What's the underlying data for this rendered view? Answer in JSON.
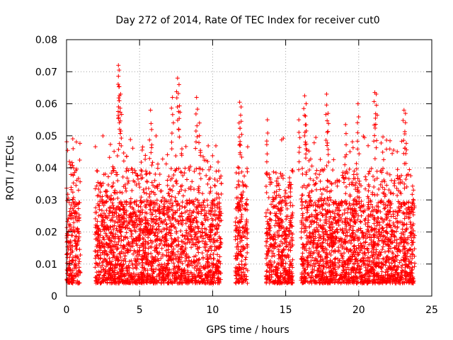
{
  "chart_data": {
    "type": "scatter",
    "title": "Day 272 of 2014, Rate Of TEC Index for receiver cut0",
    "xlabel": "GPS time / hours",
    "ylabel": "ROTI / TECUs",
    "xlim": [
      0,
      25
    ],
    "ylim": [
      0,
      0.08
    ],
    "xticks": [
      0,
      5,
      10,
      15,
      20,
      25
    ],
    "yticks": [
      0,
      0.01,
      0.02,
      0.03,
      0.04,
      0.05,
      0.06,
      0.07,
      0.08
    ],
    "xtick_labels": [
      "0",
      "5",
      "10",
      "15",
      "20",
      "25"
    ],
    "ytick_labels": [
      "0",
      "0.01",
      "0.02",
      "0.03",
      "0.04",
      "0.05",
      "0.06",
      "0.07",
      "0.08"
    ],
    "grid": true,
    "marker": "+",
    "color": "#ff0000",
    "series": [
      {
        "name": "ROTI",
        "segments": [
          {
            "start": 0.0,
            "end": 0.95
          },
          {
            "start": 1.95,
            "end": 10.6
          },
          {
            "start": 11.55,
            "end": 12.4
          },
          {
            "start": 13.65,
            "end": 15.5
          },
          {
            "start": 16.05,
            "end": 20.5
          },
          {
            "start": 20.55,
            "end": 23.85
          }
        ],
        "typical_range": [
          0.004,
          0.03
        ],
        "highlights": [
          {
            "x": 0.45,
            "y": 0.046
          },
          {
            "x": 3.55,
            "y": 0.072
          },
          {
            "x": 3.6,
            "y": 0.0705
          },
          {
            "x": 3.7,
            "y": 0.063
          },
          {
            "x": 3.6,
            "y": 0.061
          },
          {
            "x": 5.75,
            "y": 0.058
          },
          {
            "x": 7.6,
            "y": 0.068
          },
          {
            "x": 7.7,
            "y": 0.066
          },
          {
            "x": 7.25,
            "y": 0.062
          },
          {
            "x": 8.9,
            "y": 0.062
          },
          {
            "x": 11.85,
            "y": 0.0605
          },
          {
            "x": 11.95,
            "y": 0.059
          },
          {
            "x": 16.3,
            "y": 0.0625
          },
          {
            "x": 16.4,
            "y": 0.06
          },
          {
            "x": 17.8,
            "y": 0.063
          },
          {
            "x": 17.9,
            "y": 0.057
          },
          {
            "x": 19.95,
            "y": 0.06
          },
          {
            "x": 21.1,
            "y": 0.0635
          },
          {
            "x": 21.2,
            "y": 0.063
          },
          {
            "x": 23.1,
            "y": 0.058
          },
          {
            "x": 23.2,
            "y": 0.057
          },
          {
            "x": 13.75,
            "y": 0.055
          },
          {
            "x": 15.9,
            "y": 0.055
          },
          {
            "x": 19.1,
            "y": 0.0535
          },
          {
            "x": 9.1,
            "y": 0.054
          }
        ]
      }
    ]
  }
}
